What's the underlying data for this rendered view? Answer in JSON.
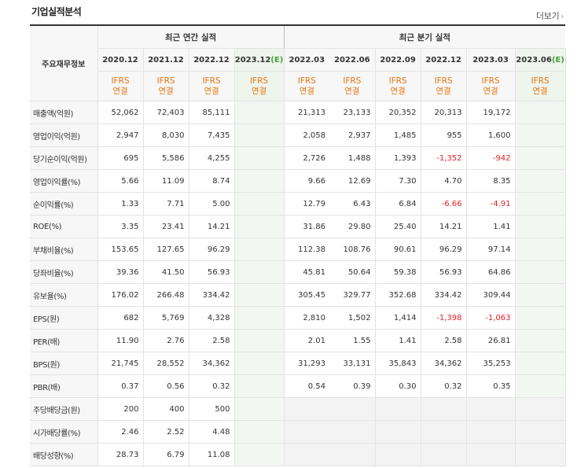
{
  "section_title": "기업실적분석",
  "more_label": "더보기",
  "annual_header": "최근 연간 실적",
  "quarter_header": "최근 분기 실적",
  "row_header": "주요재무정보",
  "annual_periods": [
    {
      "year": "2020.12",
      "est": ""
    },
    {
      "year": "2021.12",
      "est": ""
    },
    {
      "year": "2022.12",
      "est": ""
    },
    {
      "year": "2023.12",
      "est": "(E)"
    }
  ],
  "quarter_periods": [
    {
      "year": "2022.03",
      "est": ""
    },
    {
      "year": "2022.06",
      "est": ""
    },
    {
      "year": "2022.09",
      "est": ""
    },
    {
      "year": "2022.12",
      "est": ""
    },
    {
      "year": "2023.03",
      "est": ""
    },
    {
      "year": "2023.06",
      "est": "(E)"
    }
  ],
  "ifrs": {
    "line1": "IFRS",
    "line2": "연결"
  },
  "rows": [
    {
      "label": "매출액(억원)",
      "annual": [
        "52,062",
        "72,403",
        "85,111",
        ""
      ],
      "quarter": [
        "21,313",
        "23,133",
        "20,352",
        "20,313",
        "19,172",
        ""
      ]
    },
    {
      "label": "영업이익(억원)",
      "annual": [
        "2,947",
        "8,030",
        "7,435",
        ""
      ],
      "quarter": [
        "2,058",
        "2,937",
        "1,485",
        "955",
        "1,600",
        ""
      ]
    },
    {
      "label": "당기순이익(억원)",
      "annual": [
        "695",
        "5,586",
        "4,255",
        ""
      ],
      "quarter": [
        "2,726",
        "1,488",
        "1,393",
        "-1,352",
        "-942",
        ""
      ]
    },
    {
      "label": "영업이익률(%)",
      "annual": [
        "5.66",
        "11.09",
        "8.74",
        ""
      ],
      "quarter": [
        "9.66",
        "12.69",
        "7.30",
        "4.70",
        "8.35",
        ""
      ]
    },
    {
      "label": "순이익률(%)",
      "annual": [
        "1.33",
        "7.71",
        "5.00",
        ""
      ],
      "quarter": [
        "12.79",
        "6.43",
        "6.84",
        "-6.66",
        "-4.91",
        ""
      ]
    },
    {
      "label": "ROE(%)",
      "annual": [
        "3.35",
        "23.41",
        "14.21",
        ""
      ],
      "quarter": [
        "31.86",
        "29.80",
        "25.40",
        "14.21",
        "1.41",
        ""
      ]
    },
    {
      "label": "부채비율(%)",
      "annual": [
        "153.65",
        "127.65",
        "96.29",
        ""
      ],
      "quarter": [
        "112.38",
        "108.76",
        "90.61",
        "96.29",
        "97.14",
        ""
      ]
    },
    {
      "label": "당좌비율(%)",
      "annual": [
        "39.36",
        "41.50",
        "56.93",
        ""
      ],
      "quarter": [
        "45.81",
        "50.64",
        "59.38",
        "56.93",
        "64.86",
        ""
      ]
    },
    {
      "label": "유보율(%)",
      "annual": [
        "176.02",
        "266.48",
        "334.42",
        ""
      ],
      "quarter": [
        "305.45",
        "329.77",
        "352.68",
        "334.42",
        "309.44",
        ""
      ]
    },
    {
      "label": "EPS(원)",
      "annual": [
        "682",
        "5,769",
        "4,328",
        ""
      ],
      "quarter": [
        "2,810",
        "1,502",
        "1,414",
        "-1,398",
        "-1,063",
        ""
      ]
    },
    {
      "label": "PER(배)",
      "annual": [
        "11.90",
        "2.76",
        "2.58",
        ""
      ],
      "quarter": [
        "2.01",
        "1.55",
        "1.41",
        "2.58",
        "26.81",
        ""
      ]
    },
    {
      "label": "BPS(원)",
      "annual": [
        "21,745",
        "28,552",
        "34,362",
        ""
      ],
      "quarter": [
        "31,293",
        "33,131",
        "35,843",
        "34,362",
        "35,253",
        ""
      ]
    },
    {
      "label": "PBR(배)",
      "annual": [
        "0.37",
        "0.56",
        "0.32",
        ""
      ],
      "quarter": [
        "0.54",
        "0.39",
        "0.30",
        "0.32",
        "0.35",
        ""
      ]
    },
    {
      "label": "주당배당금(원)",
      "annual": [
        "200",
        "400",
        "500",
        ""
      ],
      "quarter": [
        "",
        "",
        "",
        "",
        "",
        ""
      ]
    },
    {
      "label": "시가배당률(%)",
      "annual": [
        "2.46",
        "2.52",
        "4.48",
        ""
      ],
      "quarter": [
        "",
        "",
        "",
        "",
        "",
        ""
      ]
    },
    {
      "label": "배당성향(%)",
      "annual": [
        "28.73",
        "6.79",
        "11.08",
        ""
      ],
      "quarter": [
        "",
        "",
        "",
        "",
        "",
        ""
      ]
    }
  ],
  "colors": {
    "negative": "#e4202b",
    "ifrs": "#e8740c",
    "estimate": "#41a339"
  }
}
